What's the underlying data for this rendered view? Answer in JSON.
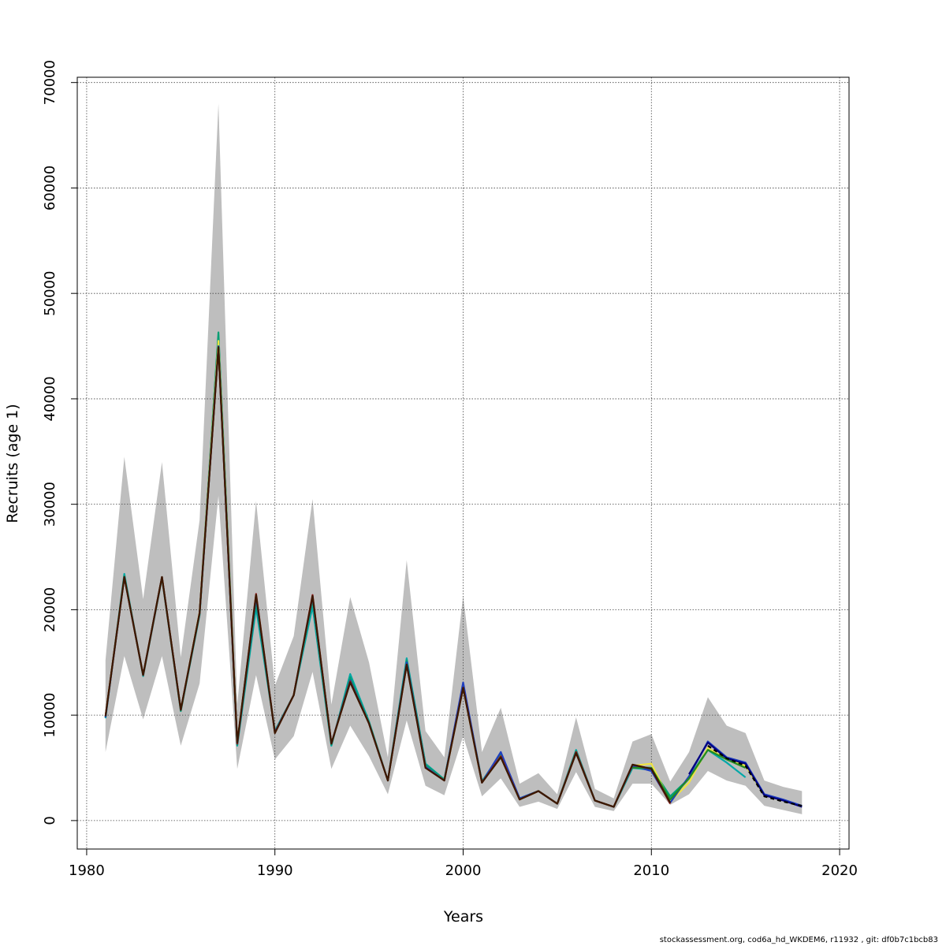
{
  "chart_data": {
    "type": "line",
    "xlabel": "Years",
    "ylabel": "Recruits (age 1)",
    "xlim": [
      1979.5,
      2020.5
    ],
    "ylim": [
      -2700,
      70500
    ],
    "x_ticks": [
      1980,
      1990,
      2000,
      2010,
      2020
    ],
    "y_ticks": [
      0,
      10000,
      20000,
      30000,
      40000,
      50000,
      60000,
      70000
    ],
    "grid": true,
    "confidence_band": {
      "color": "#bebebe",
      "x": [
        1981,
        1982,
        1983,
        1984,
        1985,
        1986,
        1987,
        1988,
        1989,
        1990,
        1991,
        1992,
        1993,
        1994,
        1995,
        1996,
        1997,
        1998,
        1999,
        2000,
        2001,
        2002,
        2003,
        2004,
        2005,
        2006,
        2007,
        2008,
        2009,
        2010,
        2011,
        2012,
        2013,
        2014,
        2015,
        2016,
        2017,
        2018
      ],
      "upper": [
        15200,
        34500,
        21000,
        34000,
        15500,
        28500,
        68000,
        11000,
        30300,
        12800,
        17500,
        30500,
        11000,
        21200,
        15000,
        6000,
        24700,
        8500,
        6000,
        21300,
        6500,
        10700,
        3500,
        4500,
        2500,
        9800,
        3000,
        2100,
        7500,
        8200,
        3700,
        6500,
        11700,
        9000,
        8300,
        3800,
        3200,
        2800
      ],
      "lower": [
        6500,
        15600,
        9600,
        15600,
        7100,
        13000,
        30800,
        4900,
        13800,
        5800,
        8000,
        14100,
        4900,
        9000,
        6100,
        2500,
        9500,
        3300,
        2400,
        8000,
        2300,
        4000,
        1300,
        1800,
        1100,
        4600,
        1300,
        900,
        3500,
        3500,
        1500,
        2500,
        4700,
        3800,
        3300,
        1400,
        1000,
        600
      ]
    },
    "series": [
      {
        "color": "#00a8a8",
        "x": [
          1981,
          1982,
          1983,
          1984,
          1985,
          1986,
          1987,
          1988,
          1989,
          1990,
          1991,
          1992,
          1993,
          1994,
          1995,
          1996,
          1997,
          1998,
          1999,
          2000,
          2001,
          2002,
          2003,
          2004,
          2005,
          2006,
          2007,
          2008,
          2009,
          2010,
          2011,
          2012,
          2013,
          2014,
          2015
        ],
        "values": [
          9700,
          23400,
          13700,
          23000,
          10400,
          19500,
          45000,
          7100,
          20200,
          8500,
          11900,
          20300,
          7100,
          13900,
          9400,
          3800,
          15400,
          5400,
          3900,
          12900,
          3700,
          6400,
          2100,
          2800,
          1600,
          6700,
          1900,
          1300,
          5000,
          4800,
          2200,
          4000,
          6700,
          5500,
          4100
        ]
      },
      {
        "color": "#009e73",
        "x": [
          1981,
          1982,
          1983,
          1984,
          1985,
          1986,
          1987,
          1988,
          1989,
          1990,
          1991,
          1992,
          1993,
          1994,
          1995,
          1996,
          1997,
          1998,
          1999,
          2000,
          2001,
          2002,
          2003,
          2004,
          2005,
          2006,
          2007,
          2008,
          2009,
          2010,
          2011,
          2012,
          2013,
          2014,
          2015,
          2016
        ],
        "values": [
          9800,
          23200,
          13800,
          23100,
          10400,
          19600,
          46300,
          7200,
          20700,
          8500,
          11900,
          20900,
          7200,
          13600,
          9300,
          3800,
          15200,
          5300,
          3900,
          12800,
          3700,
          6300,
          2100,
          2800,
          1600,
          6600,
          1900,
          1300,
          5100,
          5000,
          2300,
          4000,
          6800,
          5900,
          5200,
          2400
        ]
      },
      {
        "color": "#f0e442",
        "x": [
          1981,
          1982,
          1983,
          1984,
          1985,
          1986,
          1987,
          1988,
          1989,
          1990,
          1991,
          1992,
          1993,
          1994,
          1995,
          1996,
          1997,
          1998,
          1999,
          2000,
          2001,
          2002,
          2003,
          2004,
          2005,
          2006,
          2007,
          2008,
          2009,
          2010,
          2011,
          2012,
          2013,
          2014,
          2015,
          2016,
          2017
        ],
        "values": [
          9900,
          23100,
          13800,
          23100,
          10500,
          19800,
          45500,
          7400,
          21300,
          8400,
          11900,
          21200,
          7300,
          13200,
          9200,
          3800,
          14900,
          5100,
          3800,
          12600,
          3600,
          6100,
          2000,
          2800,
          1600,
          6500,
          1900,
          1300,
          5200,
          5400,
          1800,
          3600,
          6900,
          5800,
          5200,
          2400,
          1900
        ]
      },
      {
        "color": "#1f3fbf",
        "x": [
          1981,
          1982,
          1983,
          1984,
          1985,
          1986,
          1987,
          1988,
          1989,
          1990,
          1991,
          1992,
          1993,
          1994,
          1995,
          1996,
          1997,
          1998,
          1999,
          2000,
          2001,
          2002,
          2003,
          2004,
          2005,
          2006,
          2007,
          2008,
          2009,
          2010,
          2011,
          2012,
          2013,
          2014,
          2015,
          2016,
          2017,
          2018
        ],
        "values": [
          9800,
          23100,
          13800,
          23100,
          10500,
          19700,
          45000,
          7300,
          21200,
          8400,
          11900,
          21200,
          7300,
          13300,
          9200,
          3800,
          15000,
          5100,
          3800,
          13100,
          3600,
          6500,
          2100,
          2800,
          1600,
          6500,
          1900,
          1300,
          5200,
          4700,
          1700,
          4200,
          7500,
          6000,
          5500,
          2500,
          2000,
          1400
        ]
      },
      {
        "color": "#000080",
        "x": [
          2012,
          2013,
          2014,
          2015,
          2016,
          2017,
          2018
        ],
        "values": [
          4400,
          7400,
          5900,
          5400,
          2400,
          1900,
          1300
        ]
      },
      {
        "color": "#228b22",
        "x": [
          2009,
          2010,
          2011,
          2012,
          2013,
          2014,
          2015
        ],
        "values": [
          5000,
          5000,
          2000,
          4000,
          6700,
          5800,
          5000
        ]
      },
      {
        "color": "#8b1a1a",
        "x": [
          1981,
          1982,
          1983,
          1984,
          1985,
          1986,
          1987,
          1988,
          1989,
          1990,
          1991,
          1992,
          1993,
          1994,
          1995,
          1996,
          1997,
          1998,
          1999,
          2000,
          2001,
          2002,
          2003,
          2004,
          2005,
          2006,
          2007,
          2008,
          2009,
          2010,
          2011
        ],
        "values": [
          9900,
          23100,
          13800,
          23100,
          10500,
          19700,
          44800,
          7300,
          21500,
          8300,
          11900,
          21400,
          7300,
          13200,
          9200,
          3800,
          14800,
          5000,
          3800,
          12600,
          3600,
          6100,
          2000,
          2800,
          1600,
          6500,
          1900,
          1300,
          5300,
          4900,
          1600
        ]
      },
      {
        "color": "#3b1800",
        "x": [
          1981,
          1982,
          1983,
          1984,
          1985,
          1986,
          1987,
          1988,
          1989,
          1990,
          1991,
          1992,
          1993,
          1994,
          1995,
          1996,
          1997,
          1998,
          1999,
          2000,
          2001,
          2002,
          2003,
          2004,
          2005,
          2006,
          2007,
          2008,
          2009,
          2010,
          2011
        ],
        "values": [
          9900,
          23100,
          13800,
          23100,
          10500,
          19700,
          44900,
          7400,
          21400,
          8300,
          11900,
          21300,
          7300,
          13100,
          9200,
          3800,
          14800,
          5000,
          3800,
          12600,
          3600,
          6000,
          2000,
          2800,
          1600,
          6400,
          1900,
          1300,
          5300,
          4900,
          1700
        ]
      },
      {
        "color": "#000000",
        "dashed": true,
        "x": [
          2013,
          2014,
          2015,
          2016,
          2017,
          2018
        ],
        "values": [
          7100,
          5900,
          5200,
          2300,
          1800,
          1400
        ]
      }
    ]
  },
  "footer": "stockassessment.org, cod6a_hd_WKDEM6, r11932 , git: df0b7c1bcb83"
}
